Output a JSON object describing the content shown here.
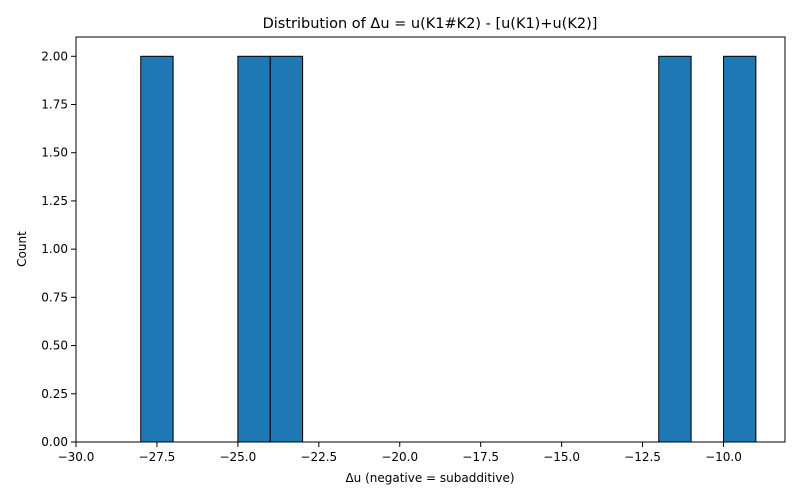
{
  "chart_data": {
    "type": "bar",
    "title": "Distribution of Δu = u(K1#K2) - [u(K1)+u(K2)]",
    "xlabel": "Δu (negative = subadditive)",
    "ylabel": "Count",
    "xlim": [
      -30,
      -8.1
    ],
    "ylim": [
      0,
      2.1
    ],
    "grid": false,
    "legend": "none",
    "bar_color": "#1f77b4",
    "edge_color": "#000000",
    "bins": [
      {
        "x0": -29,
        "x1": -28,
        "count": 0
      },
      {
        "x0": -28,
        "x1": -27,
        "count": 2
      },
      {
        "x0": -27,
        "x1": -26,
        "count": 0
      },
      {
        "x0": -26,
        "x1": -25,
        "count": 0
      },
      {
        "x0": -25,
        "x1": -24,
        "count": 2
      },
      {
        "x0": -24,
        "x1": -23,
        "count": 2
      },
      {
        "x0": -23,
        "x1": -22,
        "count": 0
      },
      {
        "x0": -22,
        "x1": -21,
        "count": 0
      },
      {
        "x0": -21,
        "x1": -20,
        "count": 0
      },
      {
        "x0": -20,
        "x1": -19,
        "count": 0
      },
      {
        "x0": -19,
        "x1": -18,
        "count": 0
      },
      {
        "x0": -18,
        "x1": -17,
        "count": 0
      },
      {
        "x0": -17,
        "x1": -16,
        "count": 0
      },
      {
        "x0": -16,
        "x1": -15,
        "count": 0
      },
      {
        "x0": -15,
        "x1": -14,
        "count": 0
      },
      {
        "x0": -14,
        "x1": -13,
        "count": 0
      },
      {
        "x0": -13,
        "x1": -12,
        "count": 0
      },
      {
        "x0": -12,
        "x1": -11,
        "count": 2
      },
      {
        "x0": -11,
        "x1": -10,
        "count": 0
      },
      {
        "x0": -10,
        "x1": -9,
        "count": 2
      }
    ],
    "x_ticks": [
      -30,
      -27.5,
      -25,
      -22.5,
      -20,
      -17.5,
      -15,
      -12.5,
      -10
    ],
    "x_tick_labels": [
      "−30.0",
      "−27.5",
      "−25.0",
      "−22.5",
      "−20.0",
      "−17.5",
      "−15.0",
      "−12.5",
      "−10.0"
    ],
    "y_ticks": [
      0,
      0.25,
      0.5,
      0.75,
      1,
      1.25,
      1.5,
      1.75,
      2
    ],
    "y_tick_labels": [
      "0.00",
      "0.25",
      "0.50",
      "0.75",
      "1.00",
      "1.25",
      "1.50",
      "1.75",
      "2.00"
    ]
  }
}
